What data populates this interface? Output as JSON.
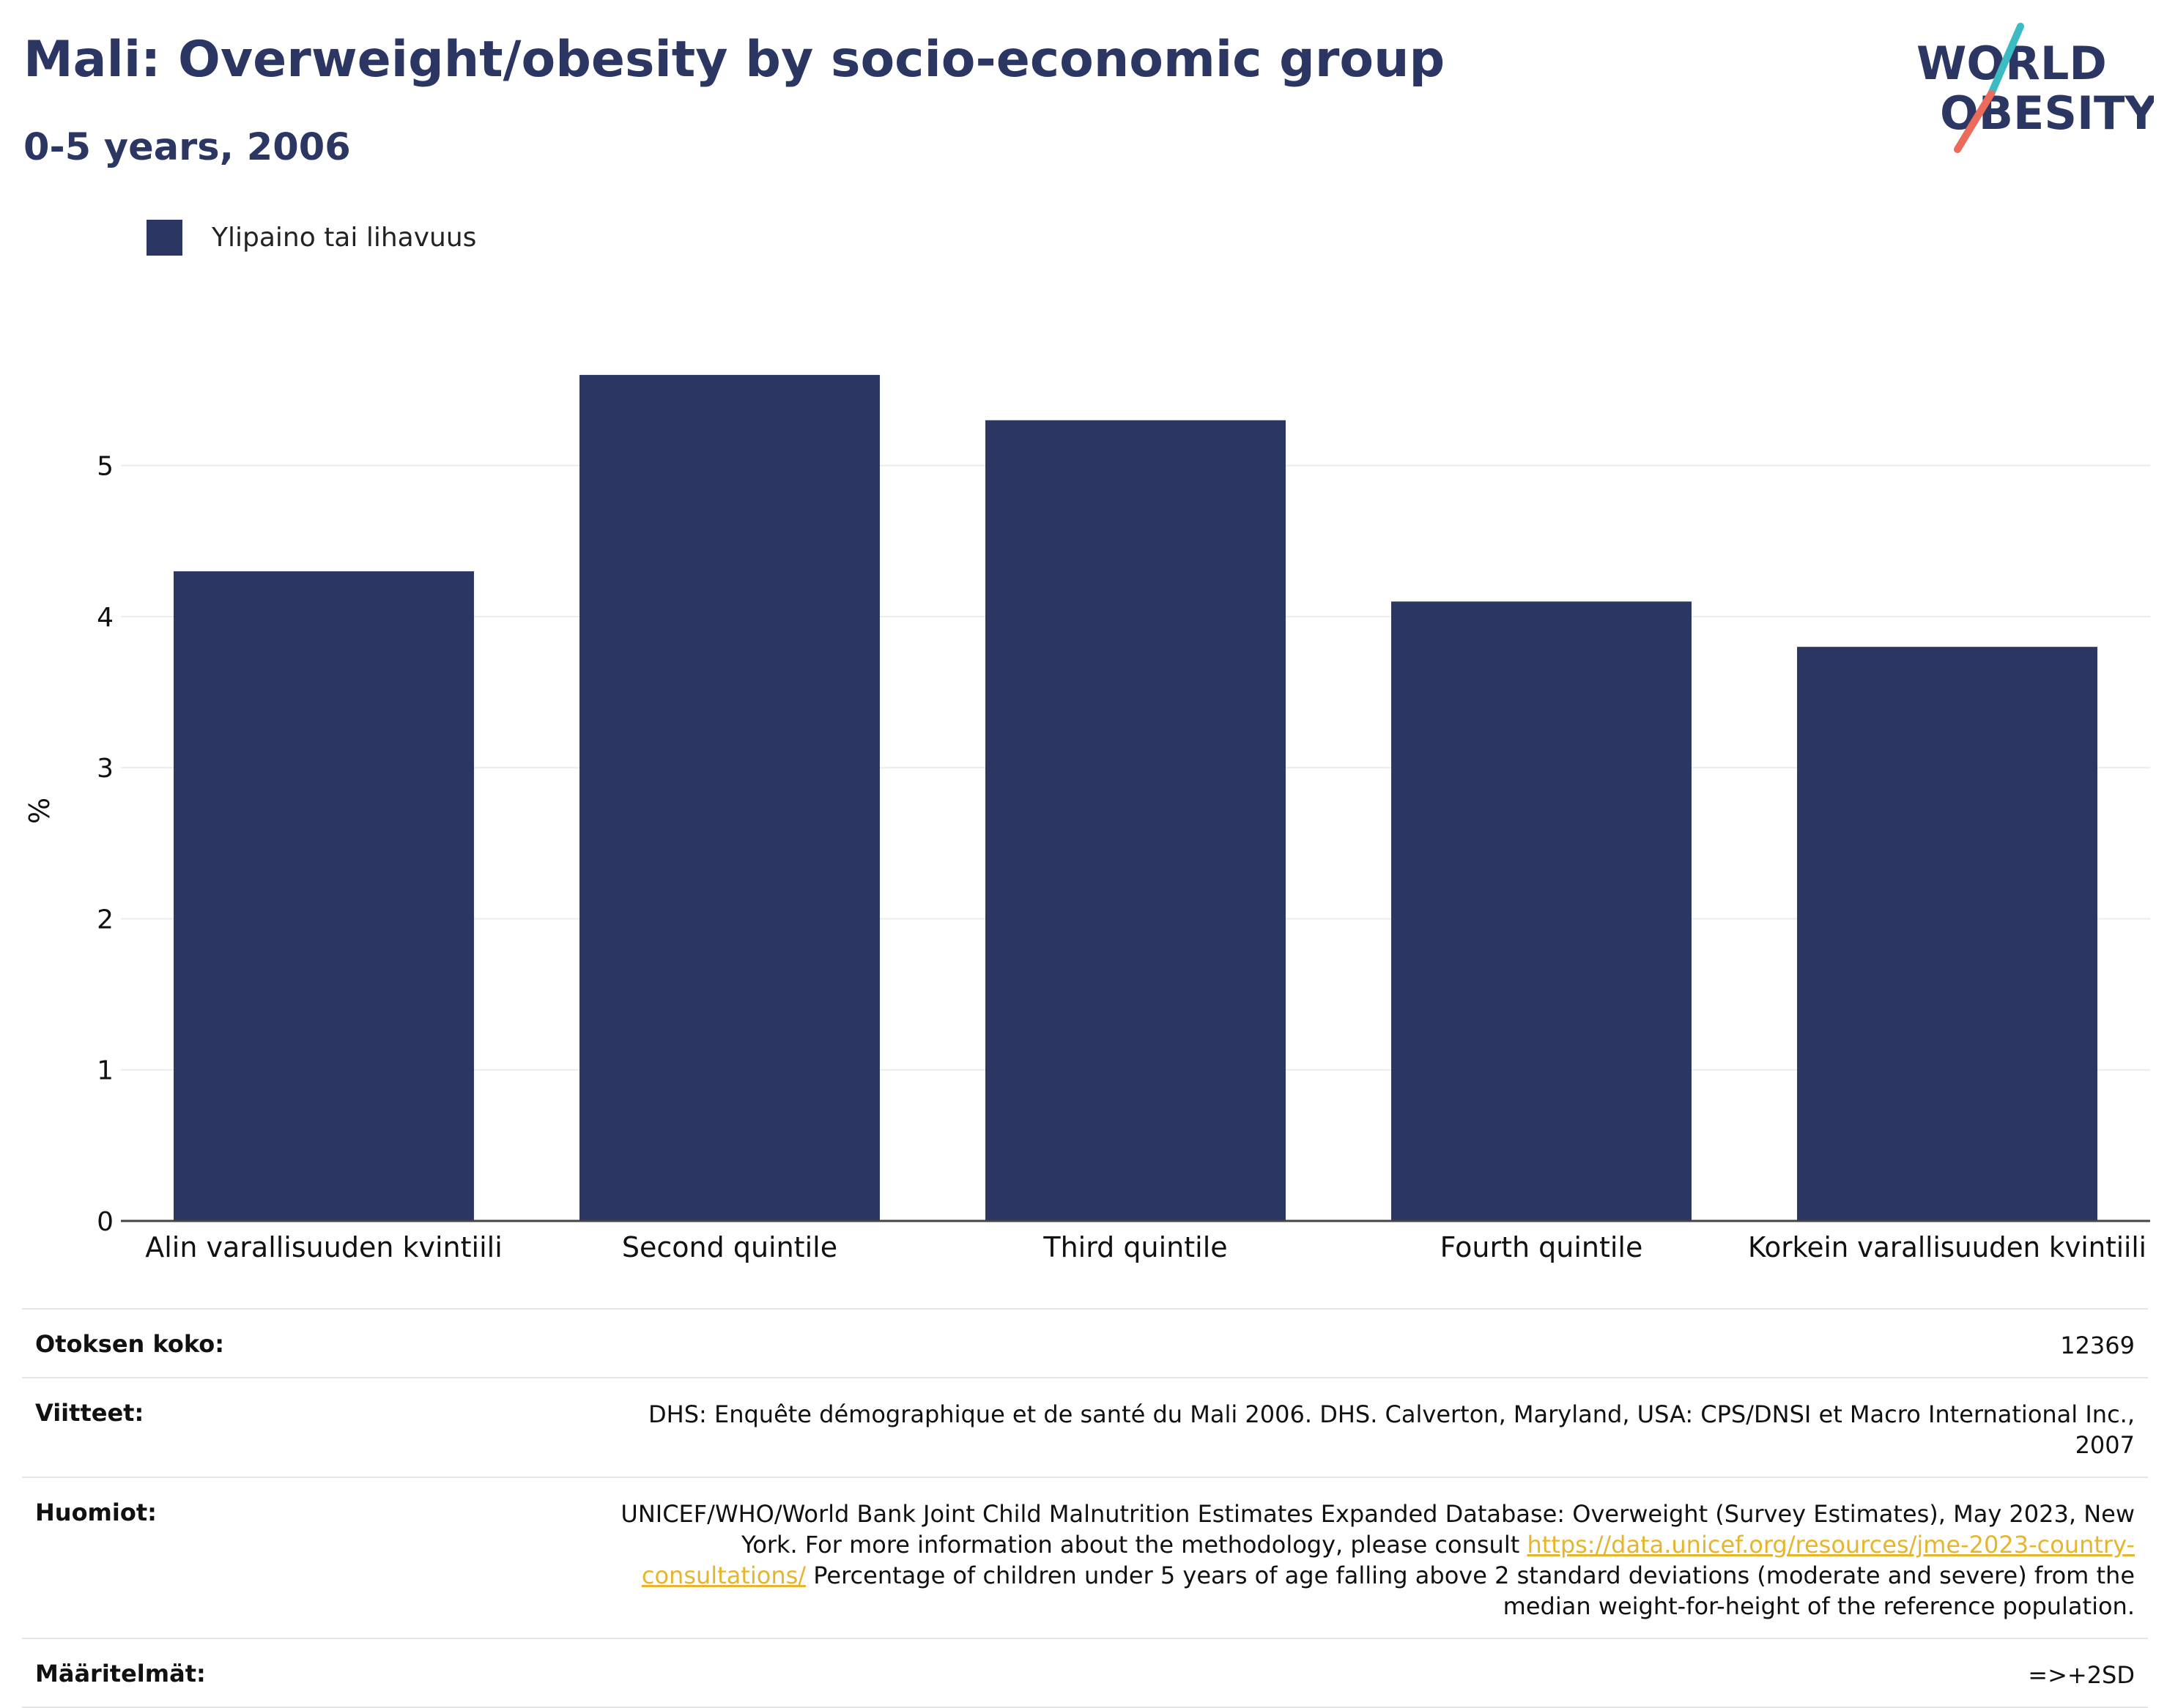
{
  "header": {
    "title": "Mali: Overweight/obesity by socio-economic group",
    "subtitle": "0-5 years, 2006"
  },
  "logo": {
    "line1": "WORLD",
    "line2": "OBESITY",
    "colors": {
      "navy": "#2b3663",
      "teal": "#3bbcc3",
      "coral": "#ec6b5b"
    }
  },
  "chart_data": {
    "type": "bar",
    "categories": [
      "Alin varallisuuden kvintiili",
      "Second quintile",
      "Third quintile",
      "Fourth quintile",
      "Korkein varallisuuden kvintiili"
    ],
    "series": [
      {
        "name": "Ylipaino tai lihavuus",
        "values": [
          4.3,
          5.6,
          5.3,
          4.1,
          3.8
        ],
        "color": "#2b3663"
      }
    ],
    "xlabel": "",
    "ylabel": "%",
    "ylim": [
      0,
      5.9
    ],
    "yticks": [
      0,
      1,
      2,
      3,
      4,
      5
    ],
    "grid": true,
    "legend_position": "top-left"
  },
  "info": {
    "sample_size": {
      "label": "Otoksen koko:",
      "value": "12369"
    },
    "references": {
      "label": "Viitteet:",
      "value": "DHS: Enquête démographique et de santé du Mali 2006. DHS. Calverton, Maryland, USA: CPS/DNSI et Macro International Inc., 2007"
    },
    "notes": {
      "label": "Huomiot:",
      "text_before_link": "UNICEF/WHO/World Bank Joint Child Malnutrition Estimates Expanded Database: Overweight (Survey Estimates), May 2023, New York. For more information about the methodology, please consult ",
      "link": "https://data.unicef.org/resources/jme-2023-country-consultations/",
      "text_after_link": " Percentage of children under 5 years of age falling above 2 standard deviations (moderate and severe) from the median weight-for-height of the reference population."
    },
    "definitions": {
      "label": "Määritelmät:",
      "value": "=>+2SD"
    }
  }
}
